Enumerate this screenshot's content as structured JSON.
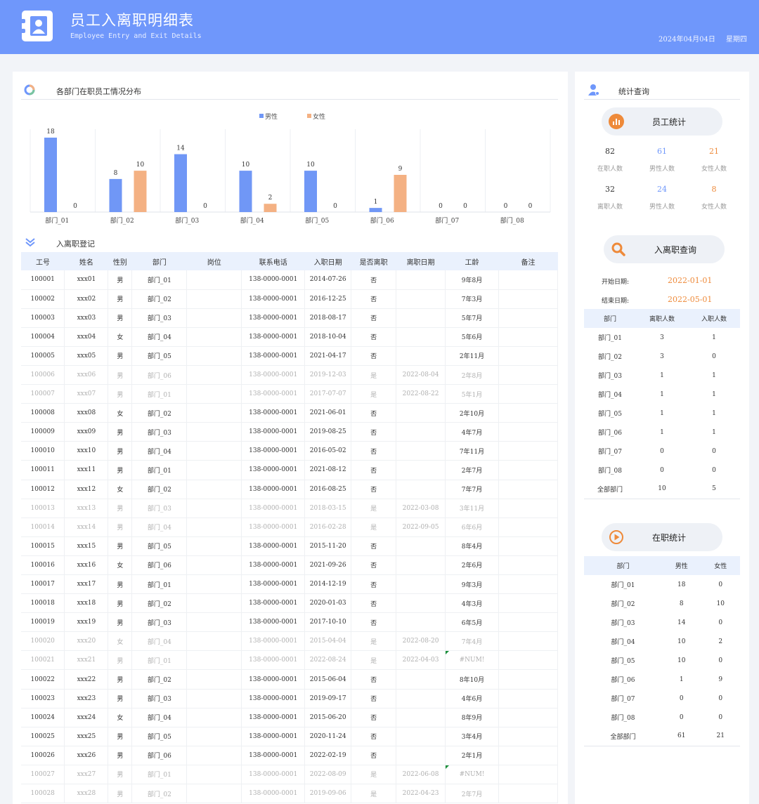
{
  "header": {
    "title": "员工入离职明细表",
    "subtitle": "Employee Entry and Exit Details",
    "date": "2024年04月04日",
    "weekday": "星期四"
  },
  "chart_section": {
    "title": "各部门在职员工情况分布"
  },
  "chart_data": {
    "type": "bar",
    "categories": [
      "部门_01",
      "部门_02",
      "部门_03",
      "部门_04",
      "部门_05",
      "部门_06",
      "部门_07",
      "部门_08"
    ],
    "series": [
      {
        "name": "男性",
        "values": [
          18,
          8,
          14,
          10,
          10,
          1,
          0,
          0
        ],
        "color": "#7097f6"
      },
      {
        "name": "女性",
        "values": [
          0,
          10,
          0,
          2,
          0,
          9,
          0,
          0
        ],
        "color": "#f4b183"
      }
    ],
    "ylim": [
      0,
      18
    ],
    "legend": "top-center",
    "grid": false
  },
  "register": {
    "title": "入离职登记",
    "columns": [
      "工号",
      "姓名",
      "性别",
      "部门",
      "岗位",
      "联系电话",
      "入职日期",
      "是否离职",
      "离职日期",
      "工龄",
      "备注"
    ],
    "rows": [
      [
        "100001",
        "xxx01",
        "男",
        "部门_01",
        "",
        "138-0000-0001",
        "2014-07-26",
        "否",
        "",
        "9年8月",
        ""
      ],
      [
        "100002",
        "xxx02",
        "男",
        "部门_02",
        "",
        "138-0000-0001",
        "2016-12-25",
        "否",
        "",
        "7年3月",
        ""
      ],
      [
        "100003",
        "xxx03",
        "男",
        "部门_03",
        "",
        "138-0000-0001",
        "2018-08-17",
        "否",
        "",
        "5年7月",
        ""
      ],
      [
        "100004",
        "xxx04",
        "女",
        "部门_04",
        "",
        "138-0000-0001",
        "2018-10-04",
        "否",
        "",
        "5年6月",
        ""
      ],
      [
        "100005",
        "xxx05",
        "男",
        "部门_05",
        "",
        "138-0000-0001",
        "2021-04-17",
        "否",
        "",
        "2年11月",
        ""
      ],
      [
        "100006",
        "xxx06",
        "男",
        "部门_06",
        "",
        "138-0000-0001",
        "2019-12-03",
        "是",
        "2022-08-04",
        "2年8月",
        ""
      ],
      [
        "100007",
        "xxx07",
        "男",
        "部门_01",
        "",
        "138-0000-0001",
        "2017-07-07",
        "是",
        "2022-08-22",
        "5年1月",
        ""
      ],
      [
        "100008",
        "xxx08",
        "女",
        "部门_02",
        "",
        "138-0000-0001",
        "2021-06-01",
        "否",
        "",
        "2年10月",
        ""
      ],
      [
        "100009",
        "xxx09",
        "男",
        "部门_03",
        "",
        "138-0000-0001",
        "2019-08-25",
        "否",
        "",
        "4年7月",
        ""
      ],
      [
        "100010",
        "xxx10",
        "男",
        "部门_04",
        "",
        "138-0000-0001",
        "2016-05-02",
        "否",
        "",
        "7年11月",
        ""
      ],
      [
        "100011",
        "xxx11",
        "男",
        "部门_01",
        "",
        "138-0000-0001",
        "2021-08-12",
        "否",
        "",
        "2年7月",
        ""
      ],
      [
        "100012",
        "xxx12",
        "女",
        "部门_02",
        "",
        "138-0000-0001",
        "2016-08-25",
        "否",
        "",
        "7年7月",
        ""
      ],
      [
        "100013",
        "xxx13",
        "男",
        "部门_03",
        "",
        "138-0000-0001",
        "2018-03-15",
        "是",
        "2022-03-08",
        "3年11月",
        ""
      ],
      [
        "100014",
        "xxx14",
        "男",
        "部门_04",
        "",
        "138-0000-0001",
        "2016-02-28",
        "是",
        "2022-09-05",
        "6年6月",
        ""
      ],
      [
        "100015",
        "xxx15",
        "男",
        "部门_05",
        "",
        "138-0000-0001",
        "2015-11-20",
        "否",
        "",
        "8年4月",
        ""
      ],
      [
        "100016",
        "xxx16",
        "女",
        "部门_06",
        "",
        "138-0000-0001",
        "2021-09-26",
        "否",
        "",
        "2年6月",
        ""
      ],
      [
        "100017",
        "xxx17",
        "男",
        "部门_01",
        "",
        "138-0000-0001",
        "2014-12-19",
        "否",
        "",
        "9年3月",
        ""
      ],
      [
        "100018",
        "xxx18",
        "男",
        "部门_02",
        "",
        "138-0000-0001",
        "2020-01-03",
        "否",
        "",
        "4年3月",
        ""
      ],
      [
        "100019",
        "xxx19",
        "男",
        "部门_03",
        "",
        "138-0000-0001",
        "2017-10-10",
        "否",
        "",
        "6年5月",
        ""
      ],
      [
        "100020",
        "xxx20",
        "女",
        "部门_04",
        "",
        "138-0000-0001",
        "2015-04-04",
        "是",
        "2022-08-20",
        "7年4月",
        ""
      ],
      [
        "100021",
        "xxx21",
        "男",
        "部门_01",
        "",
        "138-0000-0001",
        "2022-08-24",
        "是",
        "2022-04-03",
        "#NUM!",
        ""
      ],
      [
        "100022",
        "xxx22",
        "男",
        "部门_02",
        "",
        "138-0000-0001",
        "2015-06-04",
        "否",
        "",
        "8年10月",
        ""
      ],
      [
        "100023",
        "xxx23",
        "男",
        "部门_03",
        "",
        "138-0000-0001",
        "2019-09-17",
        "否",
        "",
        "4年6月",
        ""
      ],
      [
        "100024",
        "xxx24",
        "女",
        "部门_04",
        "",
        "138-0000-0001",
        "2015-06-20",
        "否",
        "",
        "8年9月",
        ""
      ],
      [
        "100025",
        "xxx25",
        "男",
        "部门_05",
        "",
        "138-0000-0001",
        "2020-11-24",
        "否",
        "",
        "3年4月",
        ""
      ],
      [
        "100026",
        "xxx26",
        "男",
        "部门_06",
        "",
        "138-0000-0001",
        "2022-02-19",
        "否",
        "",
        "2年1月",
        ""
      ],
      [
        "100027",
        "xxx27",
        "男",
        "部门_01",
        "",
        "138-0000-0001",
        "2022-08-09",
        "是",
        "2022-06-08",
        "#NUM!",
        ""
      ],
      [
        "100028",
        "xxx28",
        "男",
        "部门_02",
        "",
        "138-0000-0001",
        "2019-09-06",
        "是",
        "2022-04-23",
        "2年7月",
        ""
      ]
    ]
  },
  "stats": {
    "title": "统计查询",
    "staff_stats": {
      "label": "员工统计",
      "active": [
        {
          "value": "82",
          "label": "在职人数",
          "color": "#333333"
        },
        {
          "value": "61",
          "label": "男性人数",
          "color": "#6f97fb"
        },
        {
          "value": "21",
          "label": "女性人数",
          "color": "#ee8a3a"
        }
      ],
      "left": [
        {
          "value": "32",
          "label": "离职人数",
          "color": "#333333"
        },
        {
          "value": "24",
          "label": "男性人数",
          "color": "#6f97fb"
        },
        {
          "value": "8",
          "label": "女性人数",
          "color": "#ee8a3a"
        }
      ]
    },
    "query": {
      "label": "入离职查询",
      "start_label": "开始日期:",
      "start_value": "2022-01-01",
      "end_label": "结束日期:",
      "end_value": "2022-05-01",
      "columns": [
        "部门",
        "离职人数",
        "入职人数"
      ],
      "rows": [
        [
          "部门_01",
          "3",
          "1"
        ],
        [
          "部门_02",
          "3",
          "0"
        ],
        [
          "部门_03",
          "1",
          "1"
        ],
        [
          "部门_04",
          "1",
          "1"
        ],
        [
          "部门_05",
          "1",
          "1"
        ],
        [
          "部门_06",
          "1",
          "1"
        ],
        [
          "部门_07",
          "0",
          "0"
        ],
        [
          "部门_08",
          "0",
          "0"
        ],
        [
          "全部部门",
          "10",
          "5"
        ]
      ]
    },
    "active_stats": {
      "label": "在职统计",
      "columns": [
        "部门",
        "男性",
        "女性"
      ],
      "rows": [
        [
          "部门_01",
          "18",
          "0"
        ],
        [
          "部门_02",
          "8",
          "10"
        ],
        [
          "部门_03",
          "14",
          "0"
        ],
        [
          "部门_04",
          "10",
          "2"
        ],
        [
          "部门_05",
          "10",
          "0"
        ],
        [
          "部门_06",
          "1",
          "9"
        ],
        [
          "部门_07",
          "0",
          "0"
        ],
        [
          "部门_08",
          "0",
          "0"
        ],
        [
          "全部部门",
          "61",
          "21"
        ]
      ]
    }
  },
  "colors": {
    "accent": "#6f97fb",
    "orange": "#ee8a3a",
    "female": "#f4b183",
    "male": "#7097f6"
  }
}
